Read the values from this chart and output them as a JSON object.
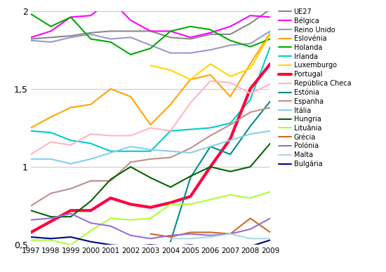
{
  "years": [
    1997,
    1998,
    1999,
    2000,
    2001,
    2002,
    2003,
    2004,
    2005,
    2006,
    2007,
    2008,
    2009
  ],
  "series": {
    "UE27": [
      1.82,
      1.83,
      1.84,
      1.86,
      1.87,
      1.87,
      1.87,
      1.83,
      1.82,
      1.85,
      1.85,
      1.92,
      2.01
    ],
    "Bélgica": [
      1.83,
      1.87,
      1.96,
      1.97,
      2.07,
      1.94,
      1.87,
      1.87,
      1.83,
      1.86,
      1.9,
      1.97,
      1.96
    ],
    "Reino Unido": [
      1.81,
      1.8,
      1.83,
      1.85,
      1.82,
      1.83,
      1.78,
      1.73,
      1.73,
      1.75,
      1.78,
      1.79,
      1.87
    ],
    "Eslovénia": [
      1.25,
      1.32,
      1.38,
      1.4,
      1.5,
      1.45,
      1.27,
      1.4,
      1.56,
      1.59,
      1.45,
      1.66,
      1.86
    ],
    "Holanda": [
      1.98,
      1.9,
      1.96,
      1.82,
      1.8,
      1.72,
      1.76,
      1.87,
      1.9,
      1.88,
      1.81,
      1.77,
      1.82
    ],
    "Irlanda": [
      1.23,
      1.22,
      1.17,
      1.15,
      1.1,
      1.1,
      1.1,
      1.23,
      1.24,
      1.25,
      1.28,
      1.43,
      1.77
    ],
    "Luxemburgo": [
      null,
      null,
      null,
      null,
      null,
      null,
      1.65,
      1.62,
      1.56,
      1.66,
      1.58,
      1.63,
      1.85
    ],
    "Portugal": [
      0.58,
      0.65,
      0.72,
      0.72,
      0.8,
      0.76,
      0.74,
      0.77,
      0.81,
      1.0,
      1.18,
      1.5,
      1.66
    ],
    "República Checa": [
      1.08,
      1.16,
      1.14,
      1.21,
      1.2,
      1.2,
      1.25,
      1.23,
      1.41,
      1.55,
      1.54,
      1.47,
      1.53
    ],
    "Estónia": [
      null,
      null,
      null,
      null,
      null,
      null,
      null,
      0.52,
      0.93,
      1.13,
      1.08,
      1.26,
      1.42
    ],
    "Espanha": [
      0.75,
      0.83,
      0.86,
      0.91,
      0.91,
      1.03,
      1.05,
      1.06,
      1.12,
      1.2,
      1.27,
      1.35,
      1.38
    ],
    "Itália": [
      1.05,
      1.05,
      1.02,
      1.05,
      1.09,
      1.13,
      1.11,
      1.1,
      1.09,
      1.13,
      1.17,
      1.21,
      1.23
    ],
    "Hungria": [
      0.72,
      0.68,
      0.68,
      0.78,
      0.92,
      1.0,
      0.93,
      0.87,
      0.94,
      1.0,
      0.97,
      1.0,
      1.15
    ],
    "Lituânia": [
      0.53,
      0.53,
      0.5,
      0.59,
      0.67,
      0.66,
      0.67,
      0.76,
      0.76,
      0.79,
      0.82,
      0.8,
      0.84
    ],
    "Grécia": [
      null,
      null,
      null,
      null,
      null,
      null,
      0.57,
      0.55,
      0.58,
      0.58,
      0.57,
      0.67,
      0.58
    ],
    "Polónia": [
      0.66,
      0.67,
      0.7,
      0.64,
      0.62,
      0.56,
      0.54,
      0.56,
      0.57,
      0.56,
      0.57,
      0.6,
      0.67
    ],
    "Malta": [
      null,
      null,
      null,
      null,
      null,
      null,
      null,
      0.54,
      0.54,
      0.55,
      0.57,
      0.54,
      0.54
    ],
    "Bulgária": [
      0.55,
      0.54,
      0.55,
      0.52,
      0.5,
      0.49,
      0.5,
      0.49,
      0.5,
      0.48,
      0.48,
      0.49,
      0.53
    ]
  },
  "colors": {
    "UE27": "#888888",
    "Bélgica": "#FF00FF",
    "Reino Unido": "#9999CC",
    "Eslovénia": "#FFA500",
    "Holanda": "#00AA00",
    "Irlanda": "#00CCCC",
    "Luxemburgo": "#FFD700",
    "Portugal": "#FF0040",
    "República Checa": "#FFB6C1",
    "Estónia": "#008B8B",
    "Espanha": "#BC8F8F",
    "Itália": "#87CEEB",
    "Hungria": "#006400",
    "Lituânia": "#ADFF2F",
    "Grécia": "#D2691E",
    "Polónia": "#9370DB",
    "Malta": "#ADD8E6",
    "Bulgária": "#00008B"
  },
  "linewidths": {
    "UE27": 1.5,
    "Bélgica": 1.5,
    "Reino Unido": 1.5,
    "Eslovénia": 1.5,
    "Holanda": 1.5,
    "Irlanda": 1.5,
    "Luxemburgo": 1.5,
    "Portugal": 3.0,
    "República Checa": 1.5,
    "Estónia": 1.5,
    "Espanha": 1.5,
    "Itália": 1.5,
    "Hungria": 1.5,
    "Lituânia": 1.5,
    "Grécia": 1.5,
    "Polónia": 1.5,
    "Malta": 1.5,
    "Bulgária": 1.5
  },
  "ylim": [
    0.5,
    2.0
  ],
  "yticks": [
    0.5,
    1.0,
    1.5,
    2.0
  ],
  "ytick_labels": [
    "0,5",
    "1",
    "1,5",
    "2"
  ],
  "background_color": "#ffffff"
}
